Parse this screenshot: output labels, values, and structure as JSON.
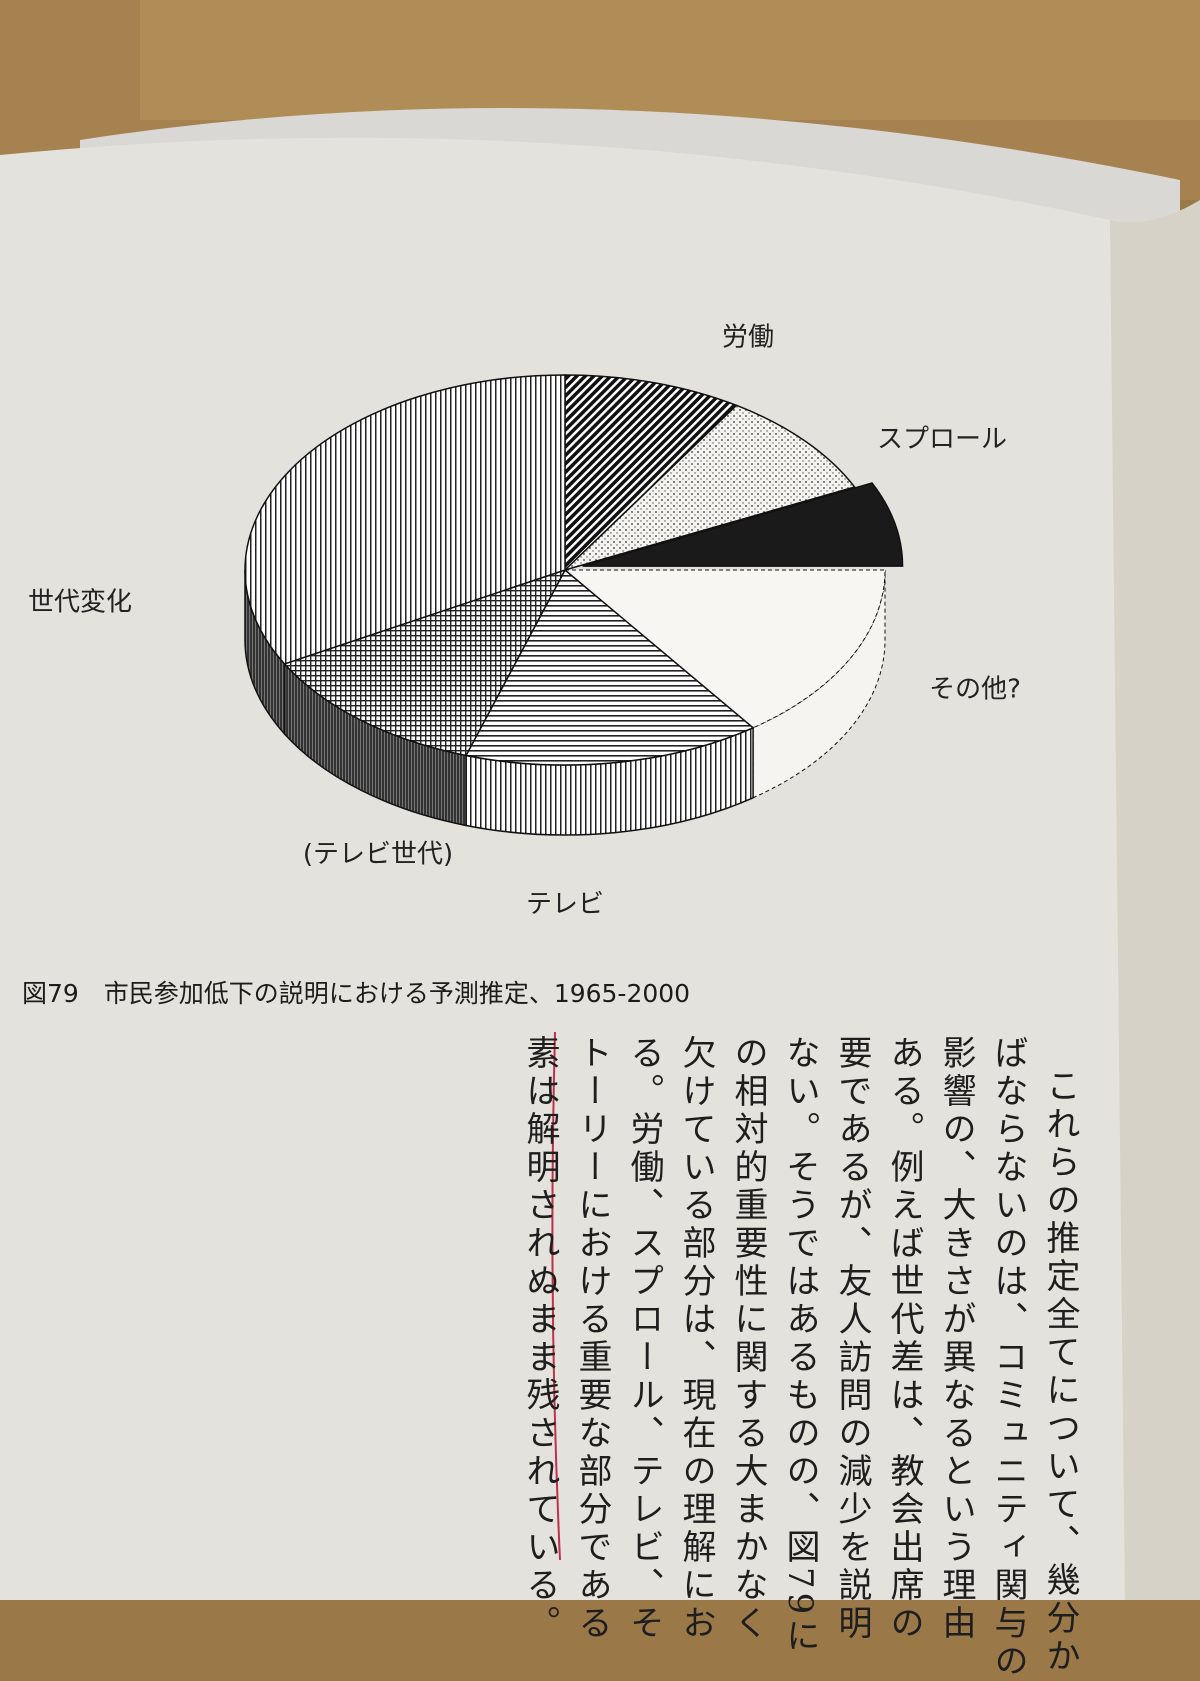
{
  "chart_data": {
    "type": "pie",
    "title": "図79　市民参加低下の説明における予測推定、1965-2000",
    "categories": [
      "労働",
      "スプロール",
      null,
      "その他?",
      "テレビ",
      "(テレビ世代)",
      "世代変化"
    ],
    "values": [
      9,
      9,
      7,
      15,
      15,
      12,
      33
    ]
  },
  "body_text": [
    "これらの推定全てについて、幾分か",
    "ばならないのは、コミュニティ関与の",
    "影響の、大きさが異なるという理由",
    "ある。例えば世代差は、教会出席の",
    "要であるが、友人訪問の減少を説明",
    "ない。そうではあるものの、図79に",
    "の相対的重要性に関する大まかなく",
    "欠けている部分は、現在の理解にお",
    "る。労働、スプロール、テレビ、そ",
    "トーリーにおける重要な部分である",
    "素は解明されぬまま残されている。"
  ]
}
